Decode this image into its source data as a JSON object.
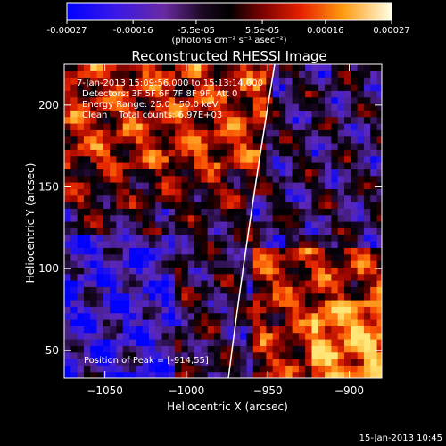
{
  "colorbar": {
    "tick_labels": [
      "-0.00027",
      "-0.00016",
      "-5.5e-05",
      "5.5e-05",
      "0.00016",
      "0.00027"
    ],
    "tick_values": [
      -0.00027,
      -0.00016,
      -5.5e-05,
      5.5e-05,
      0.00016,
      0.00027
    ],
    "range": [
      -0.00027,
      0.00027
    ],
    "units_label": "(photons cm⁻² s⁻¹ asec⁻²)",
    "colors": [
      "#0000ff",
      "#5a1fcf",
      "#2a0a4a",
      "#000000",
      "#8a0000",
      "#ff3000",
      "#ff9a10",
      "#ffffe0"
    ]
  },
  "chart_data": {
    "type": "heatmap",
    "title": "Reconstructed RHESSI Image",
    "xlabel": "Heliocentric X (arcsec)",
    "ylabel": "Heliocentric Y (arcsec)",
    "xlim": [
      -1075,
      -880
    ],
    "ylim": [
      33,
      225
    ],
    "x_ticks": [
      -1050,
      -1000,
      -950,
      -900
    ],
    "x_tick_labels": [
      "−1050",
      "−1000",
      "−950",
      "−900"
    ],
    "y_ticks": [
      50,
      100,
      150,
      200
    ],
    "y_tick_labels": [
      "50",
      "100",
      "150",
      "200"
    ],
    "annotations": [
      "7-Jan-2013 15:09:56.000 to 15:13:14.000",
      "Detectors: 3F 5F 6F 7F 8F 9F, Att 0",
      "Energy Range: 25.0 - 50.0 keV",
      "Clean    Total counts: 6.97E+03"
    ],
    "peak_label": "Position of Peak = [-914,55]",
    "peak_position": [
      -914,
      55
    ],
    "limb_line": true,
    "pixel_size_arcsec": 4
  },
  "footer": {
    "timestamp": "15-Jan-2013 10:45"
  }
}
